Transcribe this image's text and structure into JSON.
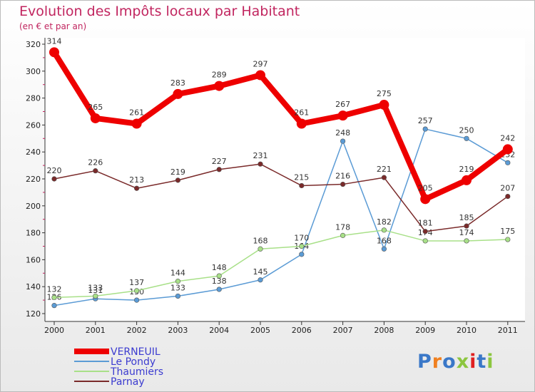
{
  "header": {
    "title": "Evolution des Impôts locaux par Habitant",
    "subtitle": "(en € et par an)"
  },
  "branding": {
    "logo_text": "Proxiti",
    "letter_colors": [
      "#3a78c8",
      "#f08020",
      "#3a78c8",
      "#8cc63f",
      "#e02020",
      "#3a78c8",
      "#8cc63f"
    ]
  },
  "chart_data": {
    "type": "line",
    "title": "Evolution des Impôts locaux par Habitant",
    "subtitle": "(en € et par an)",
    "xlabel": "",
    "ylabel": "",
    "x": [
      "2000",
      "2001",
      "2002",
      "2003",
      "2004",
      "2005",
      "2006",
      "2007",
      "2008",
      "2009",
      "2010",
      "2011"
    ],
    "ylim": [
      120,
      320
    ],
    "yticks": [
      120,
      140,
      160,
      180,
      200,
      220,
      240,
      260,
      280,
      300,
      320
    ],
    "grid": false,
    "legend_position": "bottom-left",
    "series": [
      {
        "name": "VERNEUIL",
        "color": "#ee0000",
        "style": "bold",
        "values": [
          314,
          265,
          261,
          283,
          289,
          297,
          261,
          267,
          275,
          205,
          219,
          242
        ]
      },
      {
        "name": "Le Pondy",
        "color": "#5b9bd5",
        "style": "thin",
        "values": [
          126,
          131,
          130,
          133,
          138,
          145,
          164,
          248,
          168,
          257,
          250,
          232
        ]
      },
      {
        "name": "Thaumiers",
        "color": "#a8e088",
        "style": "thin",
        "values": [
          132,
          133,
          137,
          144,
          148,
          168,
          170,
          178,
          182,
          174,
          174,
          175
        ]
      },
      {
        "name": "Parnay",
        "color": "#7a2a2a",
        "style": "thin",
        "values": [
          220,
          226,
          213,
          219,
          227,
          231,
          215,
          216,
          221,
          181,
          185,
          207
        ]
      }
    ]
  }
}
